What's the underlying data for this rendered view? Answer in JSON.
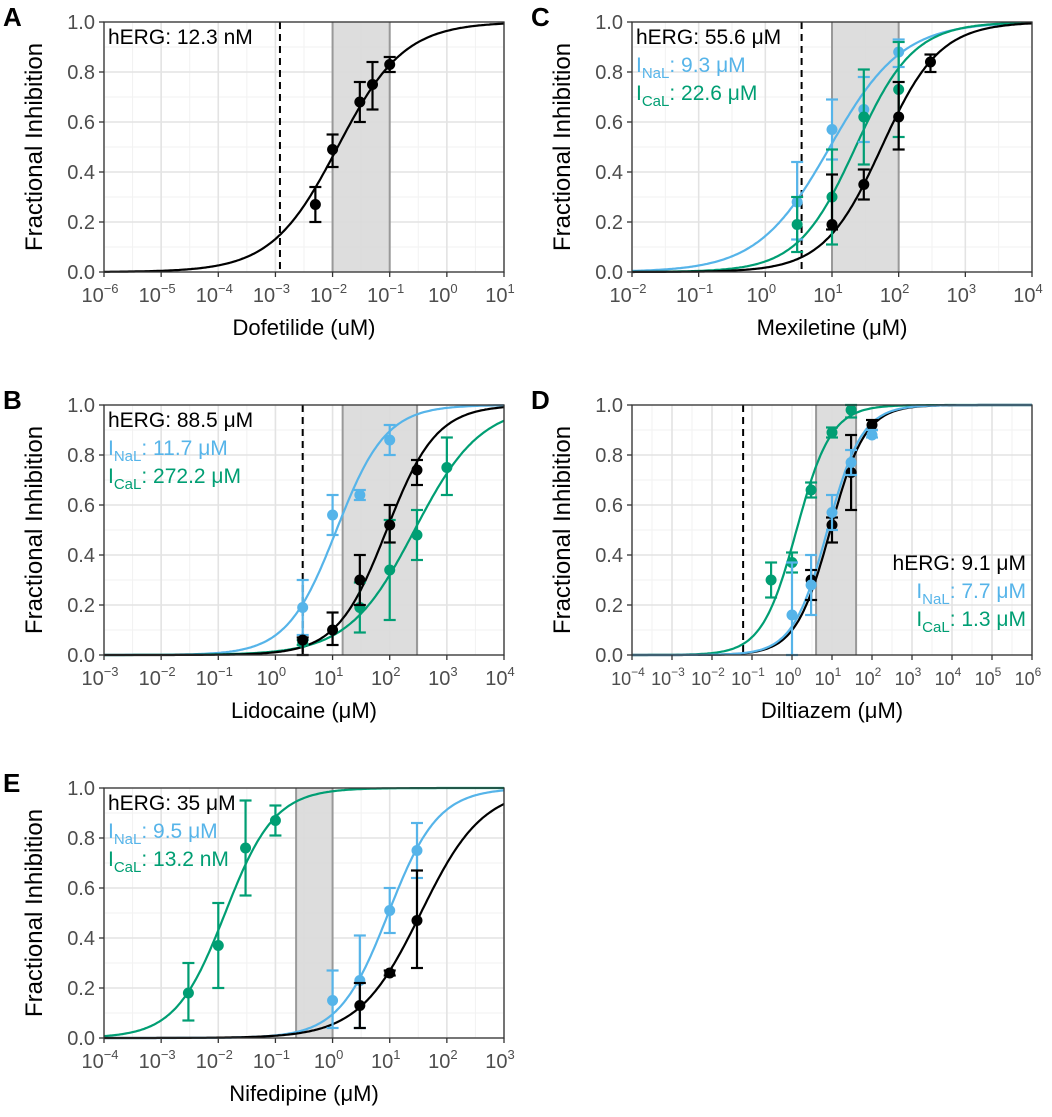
{
  "colors": {
    "hERG": "#000000",
    "NaL": "#56B4E9",
    "CaL": "#009E73",
    "shade": "#d9d9d9",
    "shade_edge": "#999999"
  },
  "chart_data": [
    {
      "panel": "A",
      "type": "line",
      "xscale": "log",
      "xlim_exp": [
        -6,
        1
      ],
      "ylim": [
        0,
        1
      ],
      "ylabel": "Fractional Inhibition",
      "xlabel": "Dofetilide (uM)",
      "yticks": [
        "0.0",
        "0.2",
        "0.4",
        "0.6",
        "0.8",
        "1.0"
      ],
      "dashed_line_x": 0.0012,
      "shaded_range": [
        0.01,
        0.1
      ],
      "annotation_position": "top-left",
      "annotations": [
        {
          "channel": "hERG",
          "prefix": "hERG",
          "sub": "",
          "value": ": 12.3 nM"
        }
      ],
      "series": [
        {
          "channel": "hERG",
          "ic50": 0.0123,
          "hill": 0.75,
          "points": [
            {
              "x": 0.005,
              "y": 0.27,
              "lo": 0.2,
              "hi": 0.34
            },
            {
              "x": 0.01,
              "y": 0.49,
              "lo": 0.42,
              "hi": 0.55
            },
            {
              "x": 0.03,
              "y": 0.68,
              "lo": 0.6,
              "hi": 0.76
            },
            {
              "x": 0.05,
              "y": 0.75,
              "lo": 0.65,
              "hi": 0.84
            },
            {
              "x": 0.1,
              "y": 0.83,
              "lo": 0.8,
              "hi": 0.86
            }
          ]
        }
      ]
    },
    {
      "panel": "C",
      "type": "line",
      "xscale": "log",
      "xlim_exp": [
        -2,
        4
      ],
      "ylim": [
        0,
        1
      ],
      "ylabel": "Fractional Inhibition",
      "xlabel": "Mexiletine (μM)",
      "yticks": [
        "0.0",
        "0.2",
        "0.4",
        "0.6",
        "0.8",
        "1.0"
      ],
      "dashed_line_x": 3.5,
      "shaded_range": [
        10,
        100
      ],
      "annotation_position": "top-left",
      "annotations": [
        {
          "channel": "hERG",
          "prefix": "hERG",
          "sub": "",
          "value": ": 55.6 μM"
        },
        {
          "channel": "NaL",
          "prefix": "I",
          "sub": "NaL",
          "value": ": 9.3 μM"
        },
        {
          "channel": "CaL",
          "prefix": "I",
          "sub": "CaL",
          "value": ": 22.6 μM"
        }
      ],
      "series": [
        {
          "channel": "NaL",
          "ic50": 9.3,
          "hill": 0.8,
          "points": [
            {
              "x": 3,
              "y": 0.28,
              "lo": 0.13,
              "hi": 0.44
            },
            {
              "x": 10,
              "y": 0.57,
              "lo": 0.45,
              "hi": 0.69
            },
            {
              "x": 30,
              "y": 0.65,
              "lo": 0.52,
              "hi": 0.78
            },
            {
              "x": 100,
              "y": 0.88,
              "lo": 0.82,
              "hi": 0.93
            }
          ]
        },
        {
          "channel": "CaL",
          "ic50": 22.6,
          "hill": 1.0,
          "points": [
            {
              "x": 3,
              "y": 0.19,
              "lo": 0.08,
              "hi": 0.3
            },
            {
              "x": 10,
              "y": 0.3,
              "lo": 0.11,
              "hi": 0.49
            },
            {
              "x": 30,
              "y": 0.62,
              "lo": 0.43,
              "hi": 0.81
            },
            {
              "x": 100,
              "y": 0.73,
              "lo": 0.54,
              "hi": 0.92
            }
          ]
        },
        {
          "channel": "hERG",
          "ic50": 55.6,
          "hill": 1.0,
          "points": [
            {
              "x": 10,
              "y": 0.19,
              "lo": 0.17,
              "hi": 0.39
            },
            {
              "x": 30,
              "y": 0.35,
              "lo": 0.29,
              "hi": 0.41
            },
            {
              "x": 100,
              "y": 0.62,
              "lo": 0.49,
              "hi": 0.76
            },
            {
              "x": 300,
              "y": 0.84,
              "lo": 0.8,
              "hi": 0.87
            }
          ]
        }
      ]
    },
    {
      "panel": "B",
      "type": "line",
      "xscale": "log",
      "xlim_exp": [
        -3,
        4
      ],
      "ylim": [
        0,
        1
      ],
      "ylabel": "Fractional Inhibition",
      "xlabel": "Lidocaine (μM)",
      "yticks": [
        "0.0",
        "0.2",
        "0.4",
        "0.6",
        "0.8",
        "1.0"
      ],
      "dashed_line_x": 3,
      "shaded_range": [
        15,
        300
      ],
      "annotation_position": "top-left",
      "annotations": [
        {
          "channel": "hERG",
          "prefix": "hERG",
          "sub": "",
          "value": ": 88.5 μM"
        },
        {
          "channel": "NaL",
          "prefix": "I",
          "sub": "NaL",
          "value": ": 11.7 μM"
        },
        {
          "channel": "CaL",
          "prefix": "I",
          "sub": "CaL",
          "value": ": 272.2 μM"
        }
      ],
      "series": [
        {
          "channel": "NaL",
          "ic50": 11.7,
          "hill": 1.0,
          "points": [
            {
              "x": 3,
              "y": 0.19,
              "lo": 0.08,
              "hi": 0.3
            },
            {
              "x": 10,
              "y": 0.56,
              "lo": 0.48,
              "hi": 0.64
            },
            {
              "x": 30,
              "y": 0.64,
              "lo": 0.62,
              "hi": 0.66
            },
            {
              "x": 100,
              "y": 0.86,
              "lo": 0.8,
              "hi": 0.92
            }
          ]
        },
        {
          "channel": "CaL",
          "ic50": 272.2,
          "hill": 0.75,
          "points": [
            {
              "x": 3,
              "y": 0.05,
              "lo": 0.04,
              "hi": 0.06
            },
            {
              "x": 30,
              "y": 0.19,
              "lo": 0.09,
              "hi": 0.29
            },
            {
              "x": 100,
              "y": 0.34,
              "lo": 0.14,
              "hi": 0.54
            },
            {
              "x": 300,
              "y": 0.48,
              "lo": 0.38,
              "hi": 0.58
            },
            {
              "x": 1000,
              "y": 0.75,
              "lo": 0.64,
              "hi": 0.87
            }
          ]
        },
        {
          "channel": "hERG",
          "ic50": 88.5,
          "hill": 1.0,
          "points": [
            {
              "x": 3,
              "y": 0.06,
              "lo": 0.0,
              "hi": 0.07
            },
            {
              "x": 10,
              "y": 0.1,
              "lo": 0.04,
              "hi": 0.17
            },
            {
              "x": 30,
              "y": 0.3,
              "lo": 0.2,
              "hi": 0.4
            },
            {
              "x": 100,
              "y": 0.52,
              "lo": 0.45,
              "hi": 0.6
            },
            {
              "x": 300,
              "y": 0.74,
              "lo": 0.68,
              "hi": 0.78
            }
          ]
        }
      ]
    },
    {
      "panel": "D",
      "type": "line",
      "xscale": "log",
      "xlim_exp": [
        -4,
        6
      ],
      "ylim": [
        0,
        1
      ],
      "ylabel": "Fractional Inhibition",
      "xlabel": "Diltiazem (μM)",
      "yticks": [
        "0.0",
        "0.2",
        "0.4",
        "0.6",
        "0.8",
        "1.0"
      ],
      "dashed_line_x": 0.06,
      "shaded_range": [
        4,
        40
      ],
      "annotation_position": "bottom-right",
      "annotations": [
        {
          "channel": "hERG",
          "prefix": "hERG",
          "sub": "",
          "value": ": 9.1 μM"
        },
        {
          "channel": "NaL",
          "prefix": "I",
          "sub": "NaL",
          "value": ": 7.7 μM"
        },
        {
          "channel": "CaL",
          "prefix": "I",
          "sub": "CaL",
          "value": ": 1.3 μM"
        }
      ],
      "series": [
        {
          "channel": "CaL",
          "ic50": 1.3,
          "hill": 1.0,
          "points": [
            {
              "x": 0.3,
              "y": 0.3,
              "lo": 0.23,
              "hi": 0.37
            },
            {
              "x": 1,
              "y": 0.37,
              "lo": 0.33,
              "hi": 0.41
            },
            {
              "x": 3,
              "y": 0.66,
              "lo": 0.63,
              "hi": 0.69
            },
            {
              "x": 10,
              "y": 0.89,
              "lo": 0.87,
              "hi": 0.91
            },
            {
              "x": 30,
              "y": 0.98,
              "lo": 0.95,
              "hi": 1.0
            }
          ]
        },
        {
          "channel": "hERG",
          "ic50": 9.1,
          "hill": 1.0,
          "points": [
            {
              "x": 3,
              "y": 0.3,
              "lo": 0.22,
              "hi": 0.34
            },
            {
              "x": 10,
              "y": 0.52,
              "lo": 0.45,
              "hi": 0.55
            },
            {
              "x": 30,
              "y": 0.73,
              "lo": 0.58,
              "hi": 0.88
            },
            {
              "x": 100,
              "y": 0.92,
              "lo": 0.9,
              "hi": 0.94
            }
          ]
        },
        {
          "channel": "NaL",
          "ic50": 7.7,
          "hill": 1.0,
          "points": [
            {
              "x": 1,
              "y": 0.16,
              "lo": 0.0,
              "hi": 0.37
            },
            {
              "x": 3,
              "y": 0.28,
              "lo": 0.16,
              "hi": 0.4
            },
            {
              "x": 10,
              "y": 0.57,
              "lo": 0.5,
              "hi": 0.64
            },
            {
              "x": 30,
              "y": 0.77,
              "lo": 0.72,
              "hi": 0.82
            },
            {
              "x": 100,
              "y": 0.88,
              "lo": 0.87,
              "hi": 0.9
            }
          ]
        }
      ]
    },
    {
      "panel": "E",
      "type": "line",
      "xscale": "log",
      "xlim_exp": [
        -4,
        3
      ],
      "ylim": [
        0,
        1
      ],
      "ylabel": "Fractional Inhibition",
      "xlabel": "Nifedipine (μM)",
      "yticks": [
        "0.0",
        "0.2",
        "0.4",
        "0.6",
        "0.8",
        "1.0"
      ],
      "dashed_line_x": null,
      "shaded_range": [
        0.23,
        1
      ],
      "annotation_position": "top-left",
      "annotations": [
        {
          "channel": "hERG",
          "prefix": "hERG",
          "sub": "",
          "value": ": 35 μM"
        },
        {
          "channel": "NaL",
          "prefix": "I",
          "sub": "NaL",
          "value": ": 9.5 μM"
        },
        {
          "channel": "CaL",
          "prefix": "I",
          "sub": "CaL",
          "value": ": 13.2 nM"
        }
      ],
      "series": [
        {
          "channel": "CaL",
          "ic50": 0.0132,
          "hill": 1.0,
          "points": [
            {
              "x": 0.003,
              "y": 0.18,
              "lo": 0.07,
              "hi": 0.3
            },
            {
              "x": 0.01,
              "y": 0.37,
              "lo": 0.2,
              "hi": 0.54
            },
            {
              "x": 0.03,
              "y": 0.76,
              "lo": 0.57,
              "hi": 0.95
            },
            {
              "x": 0.1,
              "y": 0.87,
              "lo": 0.81,
              "hi": 0.93
            }
          ]
        },
        {
          "channel": "NaL",
          "ic50": 9.5,
          "hill": 1.0,
          "points": [
            {
              "x": 1,
              "y": 0.15,
              "lo": 0.04,
              "hi": 0.27
            },
            {
              "x": 3,
              "y": 0.23,
              "lo": 0.04,
              "hi": 0.41
            },
            {
              "x": 10,
              "y": 0.51,
              "lo": 0.42,
              "hi": 0.6
            },
            {
              "x": 30,
              "y": 0.75,
              "lo": 0.64,
              "hi": 0.86
            }
          ]
        },
        {
          "channel": "hERG",
          "ic50": 35,
          "hill": 0.8,
          "points": [
            {
              "x": 3,
              "y": 0.13,
              "lo": 0.04,
              "hi": 0.22
            },
            {
              "x": 10,
              "y": 0.26,
              "lo": 0.25,
              "hi": 0.27
            },
            {
              "x": 30,
              "y": 0.47,
              "lo": 0.28,
              "hi": 0.67
            }
          ]
        }
      ]
    }
  ]
}
